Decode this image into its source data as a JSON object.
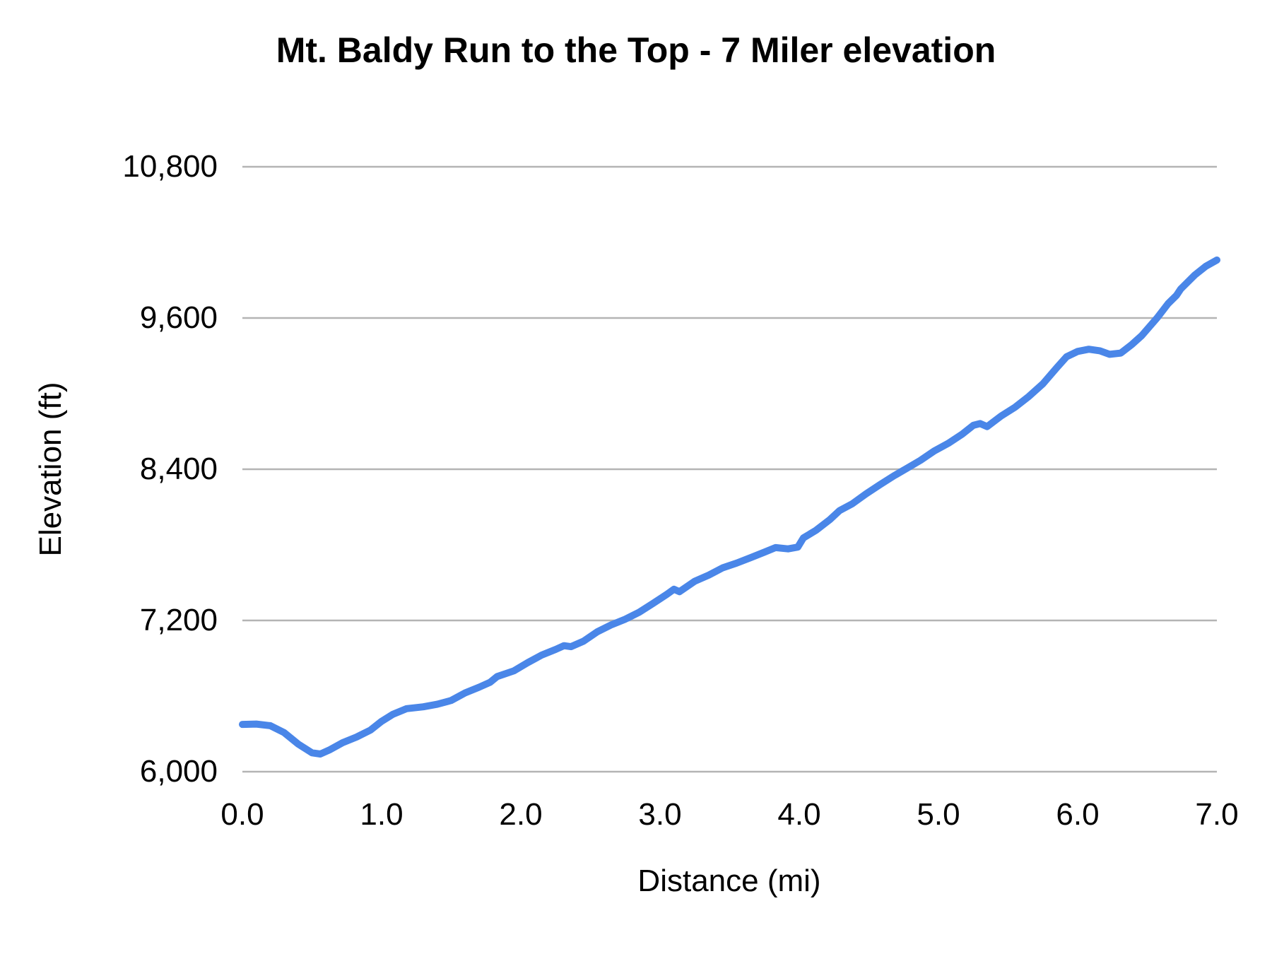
{
  "chart": {
    "title": "Mt. Baldy Run to the Top - 7 Miler elevation",
    "y_axis": {
      "title": "Elevation (ft)"
    },
    "x_axis": {
      "title": "Distance (mi)"
    }
  },
  "colors": {
    "line": "#4a86e8",
    "gridline": "#b4b4b4",
    "text": "#000000",
    "background": "#ffffff"
  },
  "chart_data": {
    "type": "line",
    "title": "Mt. Baldy Run to the Top - 7 Miler elevation",
    "xlabel": "Distance (mi)",
    "ylabel": "Elevation (ft)",
    "x_range": [
      0.0,
      7.0
    ],
    "y_range": [
      6000,
      10800
    ],
    "grid": "horizontal-only",
    "legend": "none",
    "x_ticks": [
      {
        "value": 0.0,
        "label": "0.0"
      },
      {
        "value": 1.0,
        "label": "1.0"
      },
      {
        "value": 2.0,
        "label": "2.0"
      },
      {
        "value": 3.0,
        "label": "3.0"
      },
      {
        "value": 4.0,
        "label": "4.0"
      },
      {
        "value": 5.0,
        "label": "5.0"
      },
      {
        "value": 6.0,
        "label": "6.0"
      },
      {
        "value": 7.0,
        "label": "7.0"
      }
    ],
    "y_ticks": [
      {
        "value": 6000,
        "label": "6,000"
      },
      {
        "value": 7200,
        "label": "7,200"
      },
      {
        "value": 8400,
        "label": "8,400"
      },
      {
        "value": 9600,
        "label": "9,600"
      },
      {
        "value": 10800,
        "label": "10,800"
      }
    ],
    "series": [
      {
        "name": "elevation",
        "points": [
          [
            0.0,
            6375
          ],
          [
            0.1,
            6378
          ],
          [
            0.2,
            6365
          ],
          [
            0.3,
            6310
          ],
          [
            0.4,
            6220
          ],
          [
            0.5,
            6150
          ],
          [
            0.56,
            6140
          ],
          [
            0.63,
            6175
          ],
          [
            0.72,
            6230
          ],
          [
            0.82,
            6275
          ],
          [
            0.92,
            6330
          ],
          [
            1.0,
            6400
          ],
          [
            1.08,
            6455
          ],
          [
            1.18,
            6500
          ],
          [
            1.3,
            6515
          ],
          [
            1.4,
            6535
          ],
          [
            1.5,
            6565
          ],
          [
            1.6,
            6625
          ],
          [
            1.7,
            6670
          ],
          [
            1.78,
            6710
          ],
          [
            1.83,
            6755
          ],
          [
            1.95,
            6800
          ],
          [
            2.05,
            6865
          ],
          [
            2.15,
            6925
          ],
          [
            2.25,
            6970
          ],
          [
            2.31,
            7000
          ],
          [
            2.36,
            6992
          ],
          [
            2.45,
            7035
          ],
          [
            2.55,
            7110
          ],
          [
            2.65,
            7165
          ],
          [
            2.75,
            7210
          ],
          [
            2.85,
            7265
          ],
          [
            2.95,
            7335
          ],
          [
            3.05,
            7408
          ],
          [
            3.1,
            7448
          ],
          [
            3.14,
            7428
          ],
          [
            3.25,
            7512
          ],
          [
            3.35,
            7560
          ],
          [
            3.45,
            7618
          ],
          [
            3.55,
            7655
          ],
          [
            3.65,
            7698
          ],
          [
            3.75,
            7742
          ],
          [
            3.83,
            7778
          ],
          [
            3.92,
            7768
          ],
          [
            3.99,
            7782
          ],
          [
            4.03,
            7855
          ],
          [
            4.12,
            7915
          ],
          [
            4.22,
            8000
          ],
          [
            4.29,
            8072
          ],
          [
            4.38,
            8125
          ],
          [
            4.48,
            8205
          ],
          [
            4.58,
            8278
          ],
          [
            4.68,
            8348
          ],
          [
            4.77,
            8405
          ],
          [
            4.87,
            8470
          ],
          [
            4.97,
            8545
          ],
          [
            5.07,
            8605
          ],
          [
            5.17,
            8678
          ],
          [
            5.25,
            8748
          ],
          [
            5.3,
            8762
          ],
          [
            5.35,
            8738
          ],
          [
            5.45,
            8822
          ],
          [
            5.55,
            8892
          ],
          [
            5.65,
            8978
          ],
          [
            5.75,
            9078
          ],
          [
            5.85,
            9205
          ],
          [
            5.92,
            9292
          ],
          [
            6.0,
            9335
          ],
          [
            6.08,
            9352
          ],
          [
            6.16,
            9340
          ],
          [
            6.23,
            9312
          ],
          [
            6.31,
            9322
          ],
          [
            6.39,
            9390
          ],
          [
            6.46,
            9460
          ],
          [
            6.57,
            9600
          ],
          [
            6.65,
            9715
          ],
          [
            6.71,
            9780
          ],
          [
            6.74,
            9830
          ],
          [
            6.84,
            9940
          ],
          [
            6.92,
            10010
          ],
          [
            7.0,
            10060
          ]
        ]
      }
    ]
  }
}
